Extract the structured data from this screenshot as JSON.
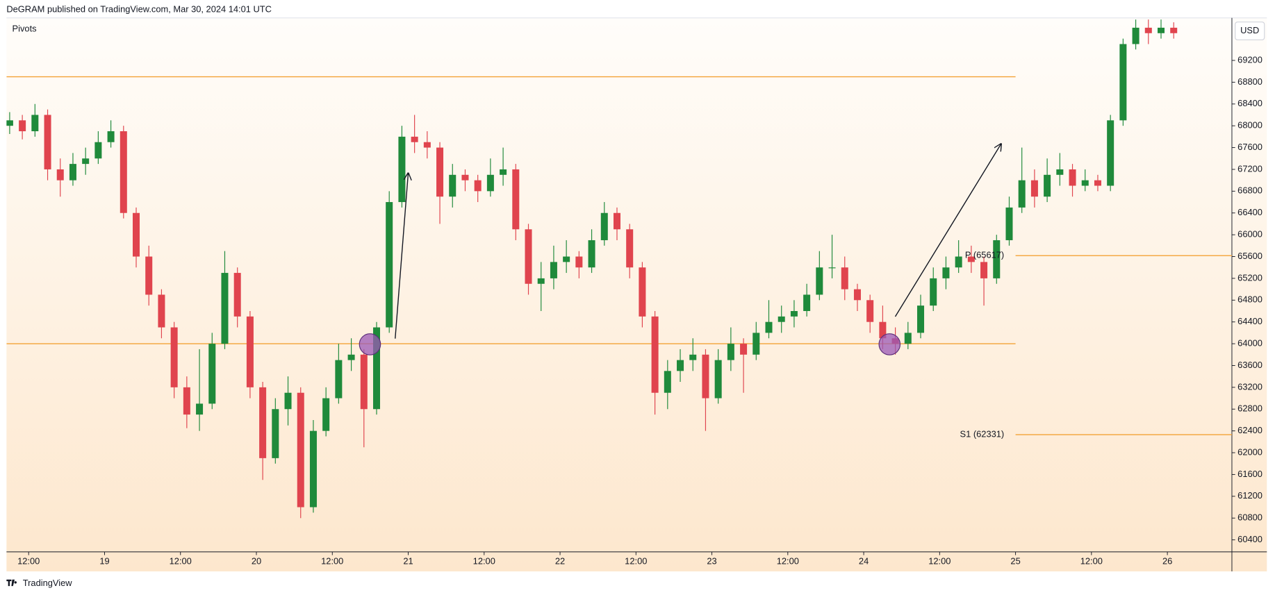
{
  "header": "DeGRAM published on TradingView.com, Mar 30, 2024 14:01 UTC",
  "footer": "TradingView",
  "indicator": "Pivots",
  "currency": "USD",
  "chart_data": {
    "type": "candlestick",
    "x": [
      8,
      10,
      12,
      14,
      16,
      18,
      20,
      22,
      24,
      26,
      28,
      30,
      32,
      34,
      36,
      38,
      40,
      42,
      44,
      46,
      48,
      50,
      52,
      54,
      56,
      58,
      60,
      62,
      64,
      66,
      68,
      70,
      72,
      74,
      76,
      78,
      80,
      82,
      84,
      86,
      88,
      90,
      92,
      94,
      96,
      98,
      100,
      102,
      104,
      106,
      108,
      110,
      112,
      114,
      116,
      118,
      120,
      122,
      124,
      126,
      128,
      130,
      132,
      134,
      136,
      138,
      140,
      142,
      144,
      146,
      148,
      150,
      152,
      154,
      156,
      158,
      160,
      162,
      164,
      166,
      168,
      170,
      172,
      174,
      176,
      178,
      180,
      182,
      184,
      186,
      188,
      190,
      192
    ],
    "open": [
      68000,
      68100,
      67900,
      68200,
      67200,
      67000,
      67300,
      67400,
      67700,
      67900,
      66400,
      65600,
      64900,
      64300,
      63200,
      62700,
      62900,
      64000,
      65300,
      64500,
      63200,
      61900,
      62800,
      63100,
      61000,
      62400,
      63000,
      63700,
      63800,
      62800,
      64300,
      66600,
      67800,
      67700,
      67600,
      66700,
      67100,
      67000,
      66800,
      67100,
      67200,
      66100,
      65100,
      65200,
      65500,
      65600,
      65400,
      65900,
      66400,
      66100,
      65400,
      64500,
      63100,
      63500,
      63700,
      63800,
      63000,
      63700,
      64000,
      63800,
      64200,
      64400,
      64500,
      64600,
      64900,
      65400,
      65400,
      65000,
      64800,
      64400,
      64100,
      64000,
      64200,
      64700,
      65200,
      65400,
      65600,
      65500,
      65200,
      65900,
      66500,
      67000,
      66700,
      67100,
      67200,
      66900,
      67000,
      66900,
      68100,
      69500,
      69800,
      69700,
      69800
    ],
    "high": [
      68250,
      68200,
      68400,
      68300,
      67400,
      67500,
      67600,
      67900,
      68100,
      68000,
      66500,
      65800,
      65000,
      64400,
      63400,
      63900,
      64200,
      65700,
      65400,
      64600,
      63300,
      63000,
      63400,
      63200,
      62600,
      63200,
      64000,
      64100,
      63900,
      64400,
      66800,
      68000,
      68200,
      67900,
      67700,
      67300,
      67200,
      67100,
      67400,
      67600,
      67300,
      66200,
      65500,
      65800,
      65900,
      65700,
      66100,
      66600,
      66500,
      66200,
      65500,
      64600,
      63700,
      63900,
      64100,
      63900,
      63900,
      64300,
      64100,
      64400,
      64800,
      64700,
      64800,
      65100,
      65700,
      66000,
      65600,
      65100,
      64900,
      64700,
      64300,
      64400,
      64900,
      65400,
      65600,
      65900,
      65800,
      65600,
      66000,
      66700,
      67600,
      67200,
      67400,
      67500,
      67300,
      67200,
      67100,
      68200,
      69600,
      69950,
      69950,
      69950,
      69900
    ],
    "low": [
      67850,
      67750,
      67800,
      67000,
      66700,
      66900,
      67100,
      67300,
      67600,
      66300,
      65400,
      64700,
      64100,
      63000,
      62450,
      62400,
      62800,
      63900,
      64300,
      63000,
      61500,
      61800,
      62500,
      60800,
      60900,
      62300,
      62900,
      63500,
      62100,
      62700,
      64200,
      66500,
      67500,
      67400,
      66200,
      66500,
      66800,
      66600,
      66700,
      66900,
      65900,
      64900,
      64600,
      65000,
      65300,
      65200,
      65300,
      65800,
      65900,
      65200,
      64300,
      62700,
      62800,
      63300,
      63500,
      62400,
      62900,
      63500,
      63100,
      63700,
      64100,
      64200,
      64300,
      64500,
      64800,
      65200,
      64800,
      64600,
      64200,
      63900,
      63800,
      63900,
      64100,
      64600,
      65000,
      65300,
      65300,
      64700,
      65100,
      65800,
      66400,
      66500,
      66600,
      66900,
      66700,
      66800,
      66800,
      66800,
      68000,
      69400,
      69500,
      69600,
      69600
    ],
    "close": [
      68100,
      67900,
      68200,
      67200,
      67000,
      67300,
      67400,
      67700,
      67900,
      66400,
      65600,
      64900,
      64300,
      63200,
      62700,
      62900,
      64000,
      65300,
      64500,
      63200,
      61900,
      62800,
      63100,
      61000,
      62400,
      63000,
      63700,
      63800,
      62800,
      64300,
      66600,
      67800,
      67700,
      67600,
      66700,
      67100,
      67000,
      66800,
      67100,
      67200,
      66100,
      65100,
      65200,
      65500,
      65600,
      65400,
      65900,
      66400,
      66100,
      65400,
      64500,
      63100,
      63500,
      63700,
      63800,
      63000,
      63700,
      64000,
      63800,
      64200,
      64400,
      64500,
      64600,
      64900,
      65400,
      65400,
      65000,
      64800,
      64400,
      64100,
      64000,
      64200,
      64700,
      65200,
      65400,
      65600,
      65500,
      65200,
      65900,
      66500,
      67000,
      66700,
      67100,
      67200,
      66900,
      67000,
      66900,
      68100,
      69500,
      69800,
      69700,
      69800,
      69700
    ],
    "up_color": "#1f8a3b",
    "down_color": "#e0444e",
    "xlim": [
      8.5,
      202.2
    ],
    "xticks": [
      {
        "value": 12,
        "label": "12:00"
      },
      {
        "value": 24,
        "label": "19"
      },
      {
        "value": 36,
        "label": "12:00"
      },
      {
        "value": 48,
        "label": "20"
      },
      {
        "value": 60,
        "label": "12:00"
      },
      {
        "value": 72,
        "label": "21"
      },
      {
        "value": 84,
        "label": "12:00"
      },
      {
        "value": 96,
        "label": "22"
      },
      {
        "value": 108,
        "label": "12:00"
      },
      {
        "value": 120,
        "label": "23"
      },
      {
        "value": 132,
        "label": "12:00"
      },
      {
        "value": 144,
        "label": "24"
      },
      {
        "value": 156,
        "label": "12:00"
      },
      {
        "value": 168,
        "label": "25"
      },
      {
        "value": 180,
        "label": "12:00"
      },
      {
        "value": 192,
        "label": "26"
      }
    ],
    "ylim": [
      60180,
      69980
    ],
    "yticks": [
      60400,
      60800,
      61200,
      61600,
      62000,
      62400,
      62800,
      63200,
      63600,
      64000,
      64400,
      64800,
      65200,
      65600,
      66000,
      66400,
      66800,
      67200,
      67600,
      68000,
      68400,
      68800,
      69200
    ],
    "grid": false,
    "levels": [
      {
        "value": 68900,
        "end": 168
      },
      {
        "value": 64000,
        "end": 168
      },
      {
        "label": "P (65617)",
        "value": 65617,
        "start": 168
      },
      {
        "label": "S1 (62331)",
        "value": 62331,
        "start": 168
      }
    ],
    "level_color": "#f4a236"
  }
}
